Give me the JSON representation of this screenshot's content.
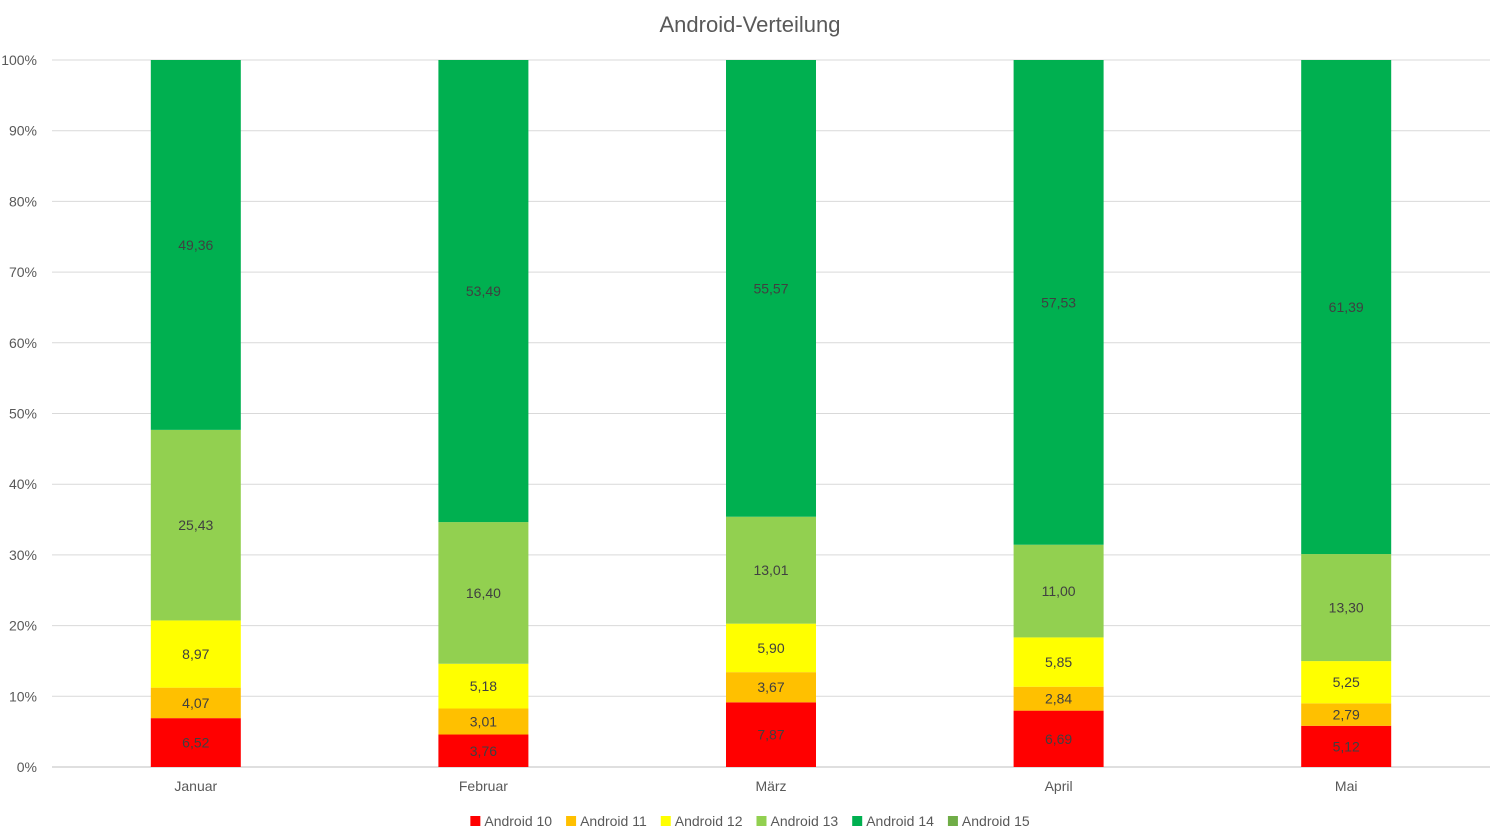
{
  "chart_data": {
    "type": "bar",
    "stacked": "percent",
    "title": "Android-Verteilung",
    "xlabel": "",
    "ylabel": "",
    "ylim": [
      0,
      100
    ],
    "y_ticks": [
      "0%",
      "10%",
      "20%",
      "30%",
      "40%",
      "50%",
      "60%",
      "70%",
      "80%",
      "90%",
      "100%"
    ],
    "categories": [
      "Januar",
      "Februar",
      "März",
      "April",
      "Mai"
    ],
    "series": [
      {
        "name": "Android 10",
        "color": "#ff0000",
        "values": [
          6.52,
          3.76,
          7.87,
          6.69,
          5.12
        ],
        "labels": [
          "6,52",
          "3,76",
          "7,87",
          "6,69",
          "5,12"
        ]
      },
      {
        "name": "Android 11",
        "color": "#ffc000",
        "values": [
          4.07,
          3.01,
          3.67,
          2.84,
          2.79
        ],
        "labels": [
          "4,07",
          "3,01",
          "3,67",
          "2,84",
          "2,79"
        ]
      },
      {
        "name": "Android 12",
        "color": "#ffff00",
        "values": [
          8.97,
          5.18,
          5.9,
          5.85,
          5.25
        ],
        "labels": [
          "8,97",
          "5,18",
          "5,90",
          "5,85",
          "5,25"
        ]
      },
      {
        "name": "Android  13",
        "color": "#92d050",
        "values": [
          25.43,
          16.4,
          13.01,
          11.0,
          13.3
        ],
        "labels": [
          "25,43",
          "16,40",
          "13,01",
          "11,00",
          "13,30"
        ]
      },
      {
        "name": "Android 14",
        "color": "#00b050",
        "values": [
          49.36,
          53.49,
          55.57,
          57.53,
          61.39
        ],
        "labels": [
          "49,36",
          "53,49",
          "55,57",
          "57,53",
          "61,39"
        ]
      },
      {
        "name": "Android 15",
        "color": "#70ad47",
        "values": [
          0,
          0,
          0,
          0,
          0
        ],
        "labels": [
          "",
          "",
          "",
          "",
          ""
        ]
      }
    ],
    "legend": "bottom",
    "grid": true
  }
}
